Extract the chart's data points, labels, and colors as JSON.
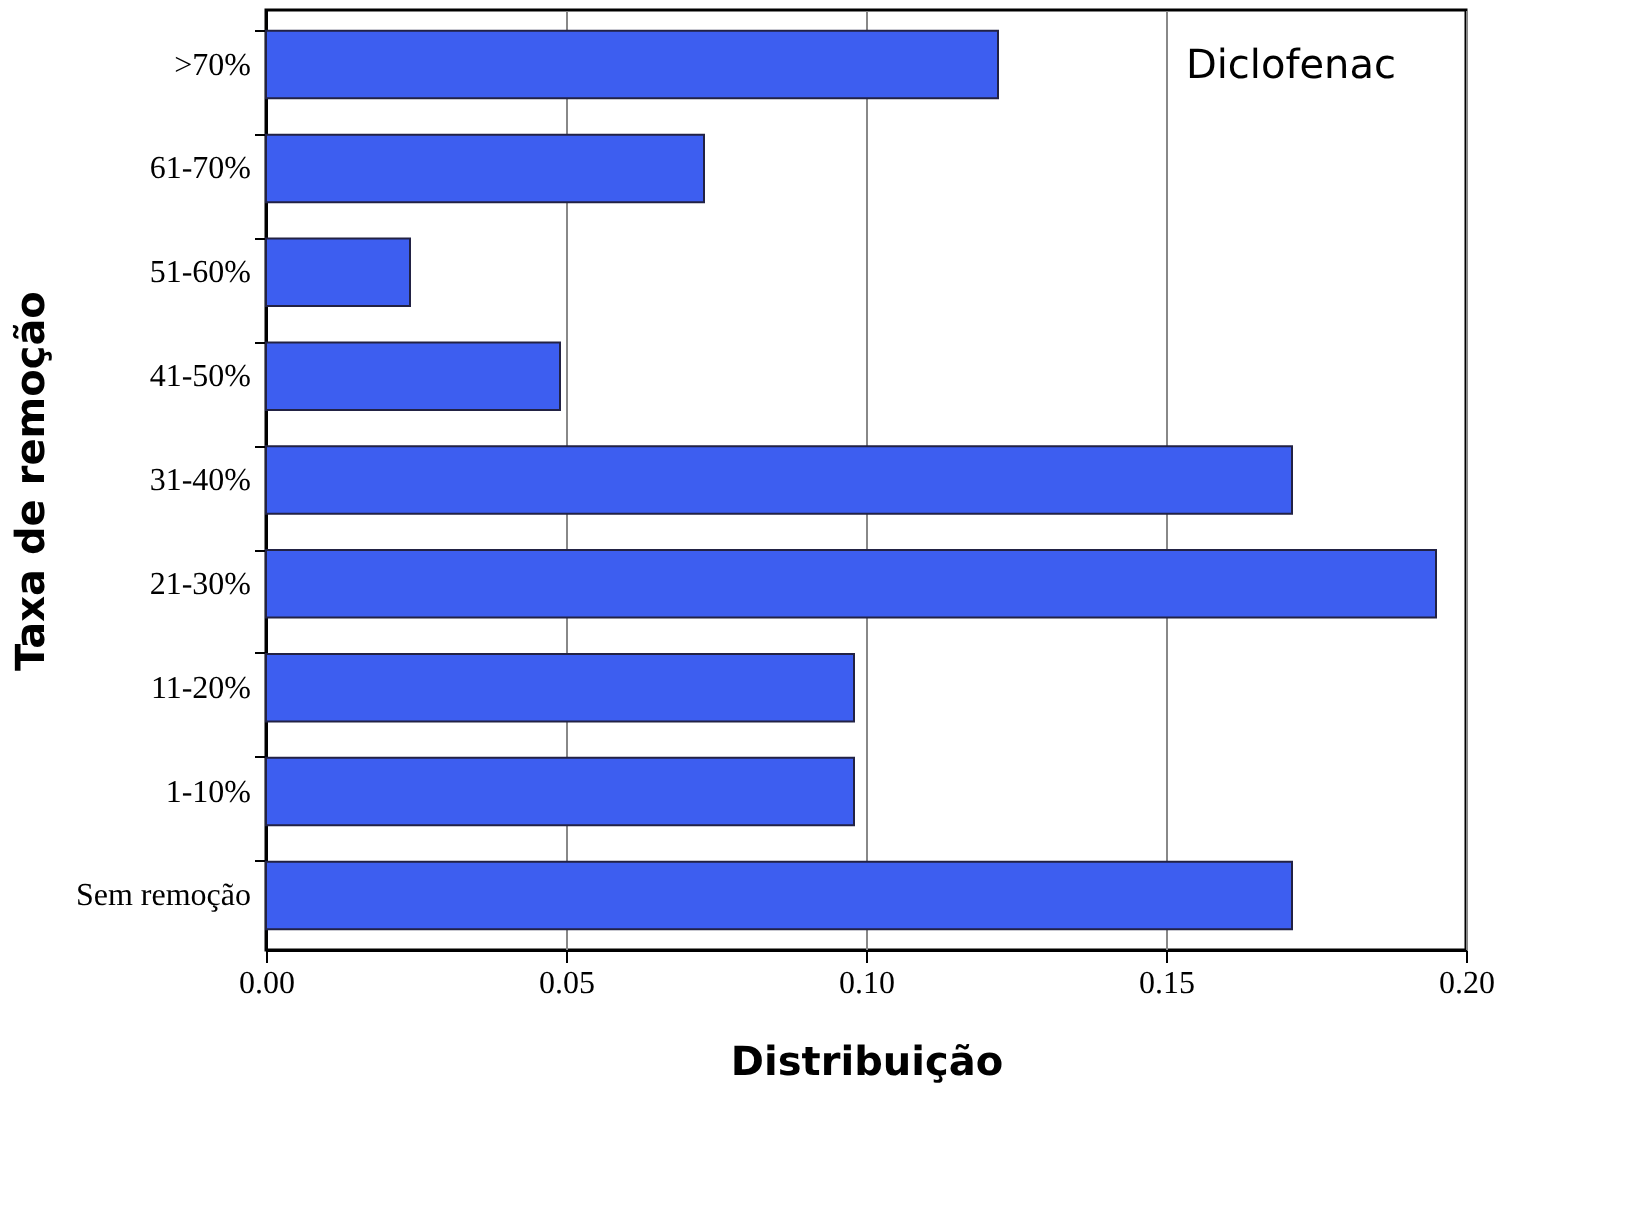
{
  "chart_data": {
    "type": "bar",
    "orientation": "horizontal",
    "categories": [
      ">70%",
      "61-70%",
      "51-60%",
      "41-50%",
      "31-40%",
      "21-30%",
      "11-20%",
      "1-10%",
      "Sem remoção"
    ],
    "values": [
      0.122,
      0.073,
      0.024,
      0.049,
      0.171,
      0.195,
      0.098,
      0.098,
      0.171
    ],
    "color": "#3d5ef0",
    "xlim": [
      0,
      0.2
    ],
    "xticks": [
      {
        "value": 0,
        "label": "0.00"
      },
      {
        "value": 0.05,
        "label": "0.05"
      },
      {
        "value": 0.1,
        "label": "0.10"
      },
      {
        "value": 0.15,
        "label": "0.15"
      },
      {
        "value": 0.2,
        "label": "0.20"
      }
    ],
    "xlabel": "Distribuição",
    "ylabel": "Taxa de remoção",
    "annotations": [
      "Diclofenac"
    ],
    "grid": "x"
  }
}
